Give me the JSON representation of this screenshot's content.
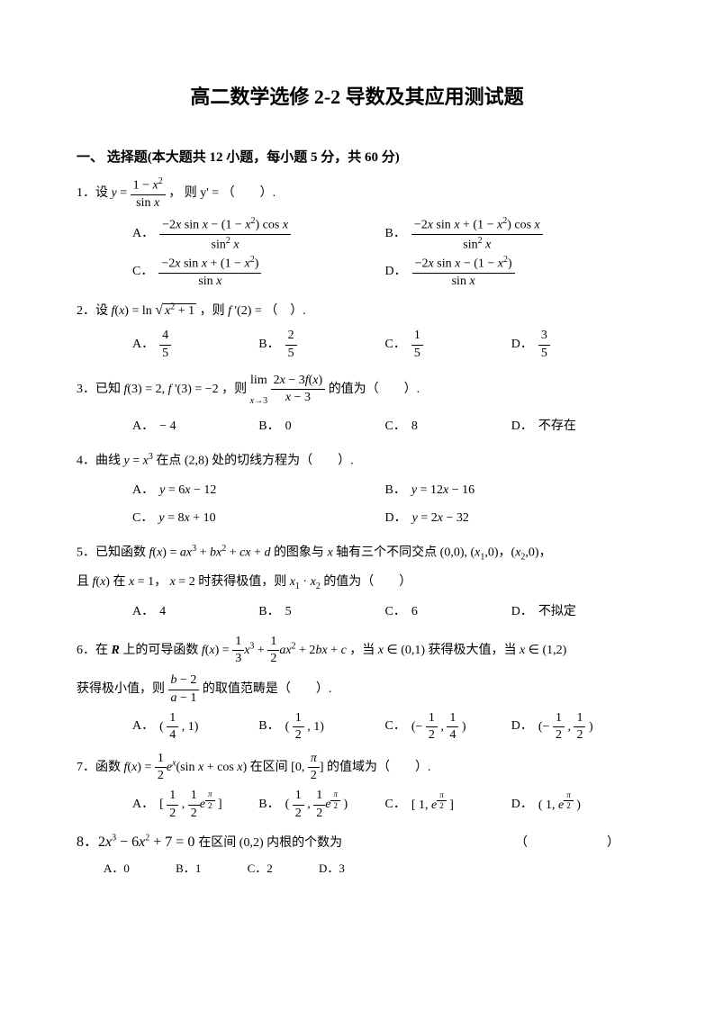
{
  "doc": {
    "title": "高二数学选修 2-2 导数及其应用测试题",
    "section_header": "一、 选择题(本大题共 12 小题，每小题 5 分，共 60 分)",
    "paren": "（　　）",
    "colors": {
      "text": "#000000",
      "bg": "#ffffff"
    },
    "fonts": {
      "title_size": 22,
      "body_size": 14,
      "section_size": 15
    }
  },
  "q1": {
    "prefix": "1．设 ",
    "formula_html": "<span class='ital'>y</span> = <span class='frac'><span class='num'>1 − <span class='ital'>x</span><sup>2</sup></span><span class='den'>sin <span class='ital'>x</span></span></span>",
    "suffix": "， 则 y' = （　　）.",
    "a_html": "<span class='frac'><span class='num'>−2<span class='ital'>x</span> sin <span class='ital'>x</span> − (1 − <span class='ital'>x</span><sup>2</sup>) cos <span class='ital'>x</span></span><span class='den'>sin<sup>2</sup> <span class='ital'>x</span></span></span>",
    "b_html": "<span class='frac'><span class='num'>−2<span class='ital'>x</span> sin <span class='ital'>x</span> + (1 − <span class='ital'>x</span><sup>2</sup>) cos <span class='ital'>x</span></span><span class='den'>sin<sup>2</sup> <span class='ital'>x</span></span></span>",
    "c_html": "<span class='frac'><span class='num'>−2<span class='ital'>x</span> sin <span class='ital'>x</span> + (1 − <span class='ital'>x</span><sup>2</sup>)</span><span class='den'>sin <span class='ital'>x</span></span></span>",
    "d_html": "<span class='frac'><span class='num'>−2<span class='ital'>x</span> sin <span class='ital'>x</span> − (1 − <span class='ital'>x</span><sup>2</sup>)</span><span class='den'>sin <span class='ital'>x</span></span></span>"
  },
  "q2": {
    "text_html": "2．设 <span class='ital'>f</span>(<span class='ital'>x</span>) = ln <span style='font-size:16px'>√</span><span class='sqrt'><span class='ital'>x</span><sup>2</sup> + 1</span> ，则 <span class='ital'>f</span> '(2) = （　）.",
    "a_html": "<span class='frac'><span class='num'>4</span><span class='den'>5</span></span>",
    "b_html": "<span class='frac'><span class='num'>2</span><span class='den'>5</span></span>",
    "c_html": "<span class='frac'><span class='num'>1</span><span class='den'>5</span></span>",
    "d_html": "<span class='frac'><span class='num'>3</span><span class='den'>5</span></span>"
  },
  "q3": {
    "text_html": "3．已知 <span class='ital'>f</span>(3) = 2, <span class='ital'>f</span> '(3) = −2 ，则 <span style='display:inline-block;vertical-align:middle'><span style='display:block;text-align:center'>lim</span><span style='display:block;font-size:10px;text-align:center'><span class='ital'>x</span>→3</span></span> <span class='frac'><span class='num'>2<span class='ital'>x</span> − 3<span class='ital'>f</span>(<span class='ital'>x</span>)</span><span class='den'><span class='ital'>x</span> − 3</span></span> 的值为（　　）.",
    "a": "− 4",
    "b": "0",
    "c": "8",
    "d": "不存在"
  },
  "q4": {
    "text_html": "4．曲线 <span class='ital'>y</span> = <span class='ital'>x</span><sup>3</sup> 在点 (2,8) 处的切线方程为（　　）.",
    "a_html": "<span class='ital'>y</span> = 6<span class='ital'>x</span> − 12",
    "b_html": "<span class='ital'>y</span> = 12<span class='ital'>x</span> − 16",
    "c_html": "<span class='ital'>y</span> = 8<span class='ital'>x</span> + 10",
    "d_html": "<span class='ital'>y</span> = 2<span class='ital'>x</span> − 32"
  },
  "q5": {
    "line1_html": "5．已知函数 <span class='ital'>f</span>(<span class='ital'>x</span>) = <span class='ital'>ax</span><sup>3</sup> + <span class='ital'>bx</span><sup>2</sup> + <span class='ital'>cx</span> + <span class='ital'>d</span> 的图象与 <span class='ital'>x</span> 轴有三个不同交点 (0,0), (<span class='ital'>x</span><sub>1</sub>,0)，(<span class='ital'>x</span><sub>2</sub>,0)，",
    "line2_html": "且 <span class='ital'>f</span>(<span class='ital'>x</span>) 在 <span class='ital'>x</span> = 1， <span class='ital'>x</span> = 2 时获得极值，则 <span class='ital'>x</span><sub>1</sub> · <span class='ital'>x</span><sub>2</sub> 的值为（　　）",
    "a": "4",
    "b": "5",
    "c": "6",
    "d": "不拟定"
  },
  "q6": {
    "line1_html": "6．在 <span class='ital' style='font-weight:bold'>R</span> 上的可导函数 <span class='ital'>f</span>(<span class='ital'>x</span>) = <span class='frac'><span class='num'>1</span><span class='den'>3</span></span><span class='ital'>x</span><sup>3</sup> + <span class='frac'><span class='num'>1</span><span class='den'>2</span></span><span class='ital'>ax</span><sup>2</sup> + 2<span class='ital'>bx</span> + <span class='ital'>c</span> ，当 <span class='ital'>x</span> ∈ (0,1) 获得极大值，当 <span class='ital'>x</span> ∈ (1,2)",
    "line2_html": "获得极小值，则 <span class='frac'><span class='num'><span class='ital'>b</span> − 2</span><span class='den'><span class='ital'>a</span> − 1</span></span> 的取值范畴是（　　）.",
    "a_html": "( <span class='frac'><span class='num'>1</span><span class='den'>4</span></span> , 1)",
    "b_html": "( <span class='frac'><span class='num'>1</span><span class='den'>2</span></span> , 1)",
    "c_html": "(− <span class='frac'><span class='num'>1</span><span class='den'>2</span></span> , <span class='frac'><span class='num'>1</span><span class='den'>4</span></span> )",
    "d_html": "(− <span class='frac'><span class='num'>1</span><span class='den'>2</span></span> , <span class='frac'><span class='num'>1</span><span class='den'>2</span></span> )"
  },
  "q7": {
    "text_html": "7．函数 <span class='ital'>f</span>(<span class='ital'>x</span>) = <span class='frac'><span class='num'>1</span><span class='den'>2</span></span><span class='ital'>e</span><sup><span class='ital'>x</span></sup>(sin <span class='ital'>x</span> + cos <span class='ital'>x</span>) 在区间 [0, <span class='frac'><span class='num'><span class='ital'>π</span></span><span class='den'>2</span></span>] 的值域为（　　）.",
    "a_html": "[ <span class='frac'><span class='num'>1</span><span class='den'>2</span></span> , <span class='frac'><span class='num'>1</span><span class='den'>2</span></span><span class='ital'>e</span><sup><span class='frac' style='font-size:9px'><span class='num'><span class='ital'>π</span></span><span class='den'>2</span></span></sup> ]",
    "b_html": "( <span class='frac'><span class='num'>1</span><span class='den'>2</span></span> , <span class='frac'><span class='num'>1</span><span class='den'>2</span></span><span class='ital'>e</span><sup><span class='frac' style='font-size:9px'><span class='num'><span class='ital'>π</span></span><span class='den'>2</span></span></sup> )",
    "c_html": "[ 1, <span class='ital'>e</span><sup><span class='frac' style='font-size:9px'><span class='num'><span class='ital'>π</span></span><span class='den'>2</span></span></sup> ]",
    "d_html": "( 1, <span class='ital'>e</span><sup><span class='frac' style='font-size:9px'><span class='num'><span class='ital'>π</span></span><span class='den'>2</span></span></sup> )"
  },
  "q8": {
    "text_html": "8．2<span class='ital'>x</span><sup>3</sup> − 6<span class='ital'>x</span><sup>2</sup> + 7 = 0 <span style='font-size:14px'>在区间 (0,2) 内根的个数为</span>",
    "a": "0",
    "b": "1",
    "c": "2",
    "d": "3"
  }
}
